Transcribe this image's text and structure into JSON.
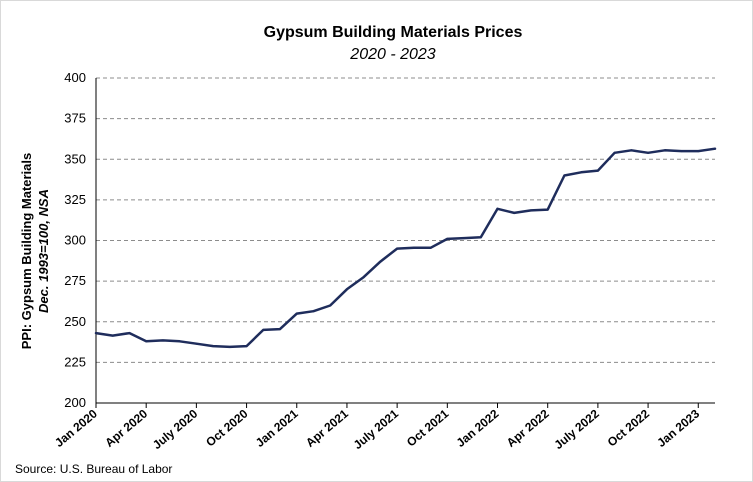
{
  "chart_data": {
    "type": "line",
    "title": "Gypsum Building Materials Prices",
    "subtitle": "2020 - 2023",
    "ylabel": "PPI: Gypsum Building Materials",
    "ylabel2": "Dec. 1993=100, NSA",
    "xlabel": "",
    "source": "Source: U.S. Bureau of Labor",
    "ylim": [
      200,
      400
    ],
    "yticks": [
      200,
      225,
      250,
      275,
      300,
      325,
      350,
      375,
      400
    ],
    "grid": true,
    "line_color": "#1f2d5c",
    "x_tick_labels": [
      {
        "label": "Jan 2020",
        "index": 0
      },
      {
        "label": "Apr 2020",
        "index": 3
      },
      {
        "label": "July 2020",
        "index": 6
      },
      {
        "label": "Oct 2020",
        "index": 9
      },
      {
        "label": "Jan 2021",
        "index": 12
      },
      {
        "label": "Apr 2021",
        "index": 15
      },
      {
        "label": "July 2021",
        "index": 18
      },
      {
        "label": "Oct 2021",
        "index": 21
      },
      {
        "label": "Jan 2022",
        "index": 24
      },
      {
        "label": "Apr 2022",
        "index": 27
      },
      {
        "label": "July 2022",
        "index": 30
      },
      {
        "label": "Oct 2022",
        "index": 33
      },
      {
        "label": "Jan 2023",
        "index": 36
      }
    ],
    "values": [
      243,
      241.5,
      243,
      238,
      238.5,
      238,
      236.5,
      235,
      234.5,
      235,
      245,
      245.5,
      255,
      256.5,
      260,
      270,
      277.5,
      287,
      295,
      295.5,
      295.5,
      301,
      301.5,
      302,
      319.5,
      317,
      318.5,
      319,
      340,
      342,
      343,
      354,
      355.5,
      354,
      355.5,
      355,
      355,
      356.5
    ]
  }
}
